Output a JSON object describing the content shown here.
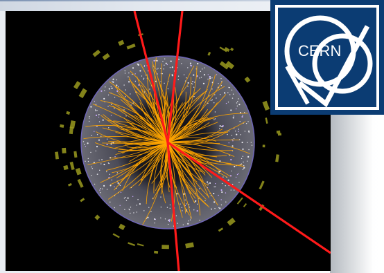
{
  "logo": {
    "text": "CERN",
    "icon": "cern-logo",
    "colors": {
      "background": "#0b3c73",
      "mark": "#ffffff"
    }
  },
  "event_display": {
    "icon": "particle-collision-event",
    "colors": {
      "background": "#000000",
      "tracks": "#ffa500",
      "highlight_tracks": "#ff1a1a",
      "calorimeter_deposits": "#9a9a1e",
      "detector_fill": "#5d5d68",
      "detector_outline": "#6f66b8"
    }
  }
}
